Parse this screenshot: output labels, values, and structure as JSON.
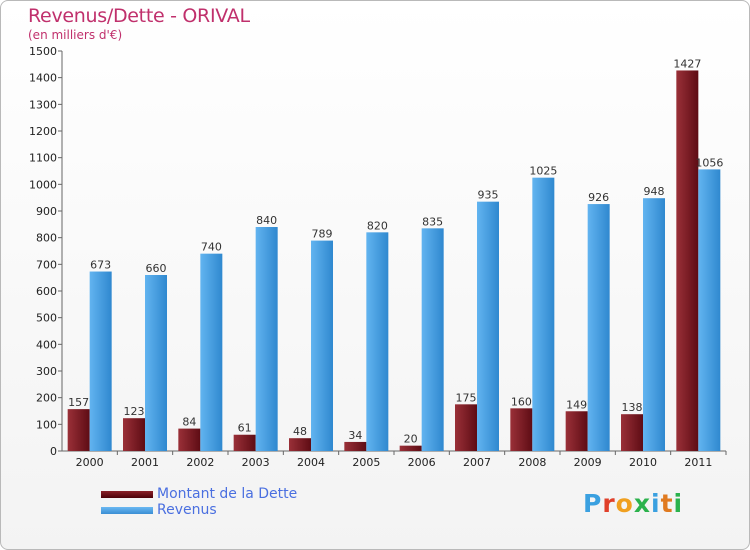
{
  "chart_data": {
    "type": "bar",
    "title": "Revenus/Dette - ORIVAL",
    "subtitle": "(en milliers d'€)",
    "categories": [
      "2000",
      "2001",
      "2002",
      "2003",
      "2004",
      "2005",
      "2006",
      "2007",
      "2008",
      "2009",
      "2010",
      "2011"
    ],
    "series": [
      {
        "name": "Montant de la Dette",
        "color": "#7a1a22",
        "values": [
          157,
          123,
          84,
          61,
          48,
          34,
          20,
          175,
          160,
          149,
          138,
          1427
        ]
      },
      {
        "name": "Revenus",
        "color": "#4da3e8",
        "values": [
          673,
          660,
          740,
          840,
          789,
          820,
          835,
          935,
          1025,
          926,
          948,
          1056
        ]
      }
    ],
    "ylim": [
      0,
      1500
    ],
    "yticks": [
      0,
      100,
      200,
      300,
      400,
      500,
      600,
      700,
      800,
      900,
      1000,
      1100,
      1200,
      1300,
      1400,
      1500
    ],
    "grid": false,
    "legend_position": "bottom-left"
  },
  "logo": {
    "text": "Proxiti",
    "colors": [
      "#3aa0e0",
      "#e0402a",
      "#f0a020",
      "#2bb24c",
      "#3aa0e0",
      "#e07a20",
      "#2bb24c"
    ]
  }
}
